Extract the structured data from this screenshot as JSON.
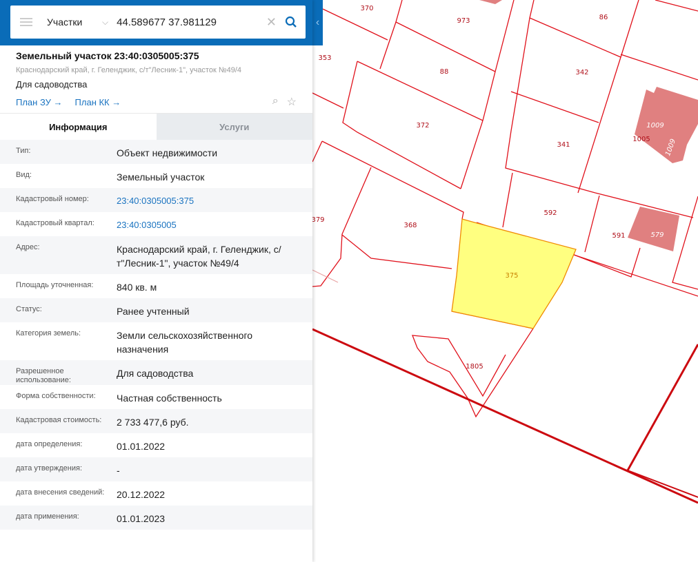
{
  "search": {
    "layer": "Участки",
    "query": "44.589677 37.981129"
  },
  "card": {
    "title": "Земельный участок 23:40:0305005:375",
    "address": "Краснодарский край, г. Геленджик, с/т\"Лесник-1\", участок №49/4",
    "purpose": "Для садоводства",
    "link1": "План ЗУ →",
    "link2": "План КК →"
  },
  "tabs": [
    {
      "label": "Информация",
      "active": true
    },
    {
      "label": "Услуги",
      "active": false
    }
  ],
  "info": [
    {
      "label": "Тип:",
      "value": "Объект недвижимости"
    },
    {
      "label": "Вид:",
      "value": "Земельный участок"
    },
    {
      "label": "Кадастровый номер:",
      "value": "23:40:0305005:375",
      "link": true
    },
    {
      "label": "Кадастровый квартал:",
      "value": "23:40:0305005",
      "link": true
    },
    {
      "label": "Адрес:",
      "value": "Краснодарский край, г. Геленджик, с/т\"Лесник-1\", участок №49/4"
    },
    {
      "label": "Площадь уточненная:",
      "value": "840 кв. м"
    },
    {
      "label": "Статус:",
      "value": "Ранее учтенный"
    },
    {
      "label": "Категория земель:",
      "value": "Земли сельскохозяйственного назначения"
    },
    {
      "label": "Разрешенное использование:",
      "value": "Для садоводства"
    },
    {
      "label": "Форма собственности:",
      "value": "Частная собственность"
    },
    {
      "label": "Кадастровая стоимость:",
      "value": "2 733 477,6 руб."
    },
    {
      "label": "дата определения:",
      "value": "01.01.2022"
    },
    {
      "label": "дата утверждения:",
      "value": "-"
    },
    {
      "label": "дата внесения сведений:",
      "value": "20.12.2022"
    },
    {
      "label": "дата применения:",
      "value": "01.01.2023"
    }
  ],
  "map": {
    "selected": "375",
    "selected_color": "#ffff80",
    "building_color": "#e08080",
    "labels": [
      "370",
      "973",
      "86",
      "353",
      "88",
      "342",
      "372",
      "341",
      "1005",
      "1009",
      "1009",
      "379",
      "368",
      "592",
      "591",
      "579",
      "375",
      "1805"
    ]
  }
}
